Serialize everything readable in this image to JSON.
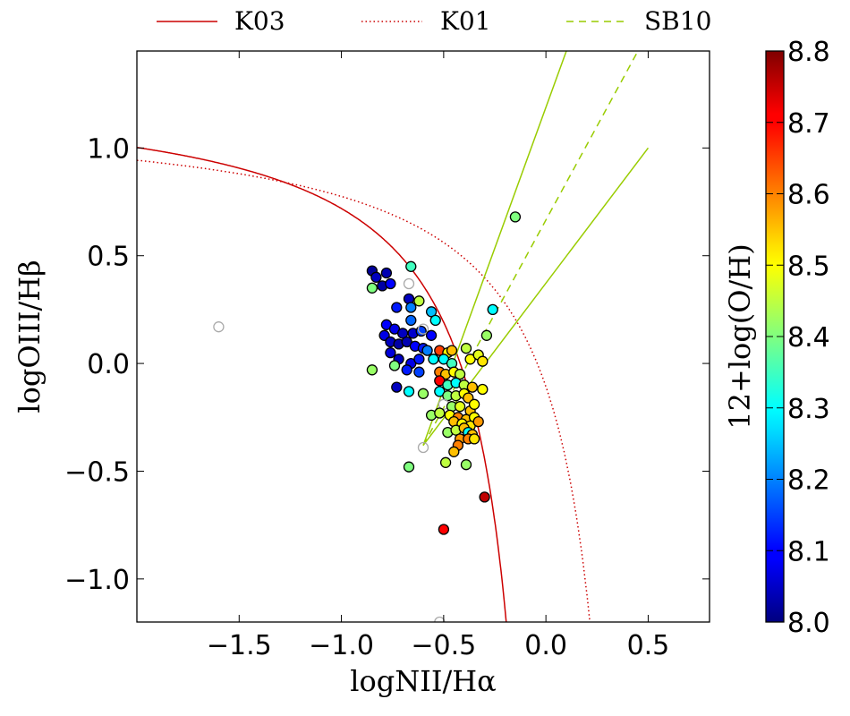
{
  "chart_data": {
    "type": "scatter",
    "xlabel": "logNII/Hα",
    "ylabel": "logOIII/Hβ",
    "xlim": [
      -2.0,
      0.8
    ],
    "ylim": [
      -1.2,
      1.45
    ],
    "x_ticks": [
      -1.5,
      -1.0,
      -0.5,
      0.0,
      0.5
    ],
    "y_ticks": [
      -1.0,
      -0.5,
      0.0,
      0.5,
      1.0
    ],
    "x_tick_labels": [
      "−1.5",
      "−1.0",
      "−0.5",
      "0.0",
      "0.5"
    ],
    "y_tick_labels": [
      "−1.0",
      "−0.5",
      "0.0",
      "0.5",
      "1.0"
    ],
    "grid": false,
    "legend_placement": "top (outside)",
    "legend": [
      {
        "name": "K03",
        "color": "#cc0000",
        "style": "solid"
      },
      {
        "name": "K01",
        "color": "#cc0000",
        "style": "dotted"
      },
      {
        "name": "SB10",
        "color": "#99cc00",
        "style": "dashed"
      }
    ],
    "colorbar": {
      "label": "12+log(O/H)",
      "range": [
        8.0,
        8.8
      ],
      "ticks": [
        8.0,
        8.1,
        8.2,
        8.3,
        8.4,
        8.5,
        8.6,
        8.7,
        8.8
      ],
      "tick_labels": [
        "8.0",
        "8.1",
        "8.2",
        "8.3",
        "8.4",
        "8.5",
        "8.6",
        "8.7",
        "8.8"
      ],
      "colormap": "jet"
    },
    "sb10_lines": [
      {
        "style": "dashed",
        "points": [
          [
            -0.6,
            -0.38
          ],
          [
            0.45,
            1.45
          ]
        ]
      },
      {
        "style": "solid",
        "points": [
          [
            -0.6,
            -0.38
          ],
          [
            0.1,
            1.45
          ]
        ]
      },
      {
        "style": "solid",
        "points": [
          [
            -0.6,
            -0.38
          ],
          [
            0.5,
            1.0
          ]
        ]
      }
    ],
    "points": [
      {
        "x": -0.85,
        "y": 0.43,
        "z": 8.02
      },
      {
        "x": -0.83,
        "y": 0.4,
        "z": 8.05
      },
      {
        "x": -0.8,
        "y": 0.36,
        "z": 8.03
      },
      {
        "x": -0.78,
        "y": 0.42,
        "z": 8.04
      },
      {
        "x": -0.76,
        "y": 0.37,
        "z": 8.1
      },
      {
        "x": -0.85,
        "y": 0.35,
        "z": 8.4
      },
      {
        "x": -0.66,
        "y": 0.45,
        "z": 8.35
      },
      {
        "x": -0.67,
        "y": 0.37,
        "z": null
      },
      {
        "x": -0.67,
        "y": 0.3,
        "z": 8.05
      },
      {
        "x": -0.62,
        "y": 0.29,
        "z": 8.45
      },
      {
        "x": -0.73,
        "y": 0.26,
        "z": 8.12
      },
      {
        "x": -0.66,
        "y": 0.26,
        "z": 8.2
      },
      {
        "x": -0.56,
        "y": 0.24,
        "z": 8.25
      },
      {
        "x": -0.54,
        "y": 0.2,
        "z": 8.3
      },
      {
        "x": -0.66,
        "y": 0.2,
        "z": 8.18
      },
      {
        "x": -0.78,
        "y": 0.18,
        "z": 8.1
      },
      {
        "x": -0.74,
        "y": 0.16,
        "z": 8.08
      },
      {
        "x": -0.7,
        "y": 0.14,
        "z": 8.05
      },
      {
        "x": -0.65,
        "y": 0.14,
        "z": 8.06
      },
      {
        "x": -0.61,
        "y": 0.15,
        "z": 8.15
      },
      {
        "x": -0.6,
        "y": 0.16,
        "z": null
      },
      {
        "x": -0.56,
        "y": 0.13,
        "z": 8.1
      },
      {
        "x": -0.79,
        "y": 0.13,
        "z": 8.08
      },
      {
        "x": -0.76,
        "y": 0.1,
        "z": 8.05
      },
      {
        "x": -0.72,
        "y": 0.09,
        "z": 8.03
      },
      {
        "x": -0.68,
        "y": 0.1,
        "z": 8.04
      },
      {
        "x": -0.64,
        "y": 0.08,
        "z": 8.1
      },
      {
        "x": -0.6,
        "y": 0.07,
        "z": 8.12
      },
      {
        "x": -0.58,
        "y": 0.06,
        "z": 8.2
      },
      {
        "x": -0.52,
        "y": 0.06,
        "z": 8.65
      },
      {
        "x": -0.48,
        "y": 0.05,
        "z": 8.5
      },
      {
        "x": -0.46,
        "y": 0.06,
        "z": 8.55
      },
      {
        "x": -0.39,
        "y": 0.07,
        "z": 8.45
      },
      {
        "x": -0.76,
        "y": 0.05,
        "z": 8.07
      },
      {
        "x": -0.72,
        "y": 0.02,
        "z": 8.05
      },
      {
        "x": -0.66,
        "y": 0.0,
        "z": 8.08
      },
      {
        "x": -0.62,
        "y": 0.02,
        "z": 8.12
      },
      {
        "x": -0.55,
        "y": 0.02,
        "z": 8.3
      },
      {
        "x": -0.5,
        "y": 0.02,
        "z": 8.3
      },
      {
        "x": -0.46,
        "y": 0.0,
        "z": 8.35
      },
      {
        "x": -0.37,
        "y": 0.02,
        "z": 8.5
      },
      {
        "x": -0.33,
        "y": 0.04,
        "z": 8.48
      },
      {
        "x": -0.31,
        "y": 0.01,
        "z": 8.52
      },
      {
        "x": -0.29,
        "y": 0.13,
        "z": 8.42
      },
      {
        "x": -0.26,
        "y": 0.25,
        "z": 8.3
      },
      {
        "x": -0.15,
        "y": 0.68,
        "z": 8.4
      },
      {
        "x": -0.85,
        "y": -0.03,
        "z": 8.42
      },
      {
        "x": -0.74,
        "y": -0.01,
        "z": 8.4
      },
      {
        "x": -0.68,
        "y": -0.03,
        "z": 8.12
      },
      {
        "x": -0.62,
        "y": -0.04,
        "z": 8.15
      },
      {
        "x": -0.52,
        "y": -0.04,
        "z": 8.6
      },
      {
        "x": -0.49,
        "y": -0.05,
        "z": 8.55
      },
      {
        "x": -0.45,
        "y": -0.04,
        "z": 8.5
      },
      {
        "x": -0.42,
        "y": -0.05,
        "z": 8.45
      },
      {
        "x": -0.52,
        "y": -0.08,
        "z": 8.7
      },
      {
        "x": -0.48,
        "y": -0.1,
        "z": 8.35
      },
      {
        "x": -0.44,
        "y": -0.09,
        "z": 8.3
      },
      {
        "x": -0.4,
        "y": -0.1,
        "z": 8.45
      },
      {
        "x": -0.36,
        "y": -0.11,
        "z": 8.55
      },
      {
        "x": -0.31,
        "y": -0.12,
        "z": 8.5
      },
      {
        "x": -0.73,
        "y": -0.11,
        "z": 8.05
      },
      {
        "x": -0.67,
        "y": -0.13,
        "z": 8.3
      },
      {
        "x": -0.6,
        "y": -0.14,
        "z": 8.42
      },
      {
        "x": -0.52,
        "y": -0.13,
        "z": 8.3
      },
      {
        "x": -0.48,
        "y": -0.15,
        "z": 8.4
      },
      {
        "x": -0.44,
        "y": -0.15,
        "z": 8.45
      },
      {
        "x": -0.4,
        "y": -0.14,
        "z": 8.5
      },
      {
        "x": -0.38,
        "y": -0.16,
        "z": 8.55
      },
      {
        "x": -0.5,
        "y": -0.19,
        "z": null
      },
      {
        "x": -0.46,
        "y": -0.2,
        "z": 8.42
      },
      {
        "x": -0.42,
        "y": -0.2,
        "z": 8.48
      },
      {
        "x": -0.37,
        "y": -0.22,
        "z": 8.55
      },
      {
        "x": -0.35,
        "y": -0.19,
        "z": 8.5
      },
      {
        "x": -0.56,
        "y": -0.24,
        "z": 8.42
      },
      {
        "x": -0.52,
        "y": -0.23,
        "z": 8.45
      },
      {
        "x": -0.47,
        "y": -0.24,
        "z": 8.5
      },
      {
        "x": -0.43,
        "y": -0.25,
        "z": 8.6
      },
      {
        "x": -0.39,
        "y": -0.26,
        "z": 8.55
      },
      {
        "x": -0.35,
        "y": -0.25,
        "z": 8.5
      },
      {
        "x": -0.45,
        "y": -0.27,
        "z": 8.55
      },
      {
        "x": -0.41,
        "y": -0.28,
        "z": 8.5
      },
      {
        "x": -0.37,
        "y": -0.29,
        "z": 8.52
      },
      {
        "x": -0.33,
        "y": -0.27,
        "z": 8.58
      },
      {
        "x": -0.48,
        "y": -0.32,
        "z": 8.42
      },
      {
        "x": -0.44,
        "y": -0.31,
        "z": 8.45
      },
      {
        "x": -0.4,
        "y": -0.3,
        "z": 8.55
      },
      {
        "x": -0.38,
        "y": -0.32,
        "z": 8.3
      },
      {
        "x": -0.36,
        "y": -0.33,
        "z": 8.55
      },
      {
        "x": -0.42,
        "y": -0.35,
        "z": 8.58
      },
      {
        "x": -0.38,
        "y": -0.35,
        "z": 8.6
      },
      {
        "x": -0.35,
        "y": -0.35,
        "z": 8.52
      },
      {
        "x": -0.43,
        "y": -0.38,
        "z": 8.6
      },
      {
        "x": -0.45,
        "y": -0.41,
        "z": 8.55
      },
      {
        "x": -0.6,
        "y": -0.39,
        "z": null
      },
      {
        "x": -0.49,
        "y": -0.46,
        "z": 8.45
      },
      {
        "x": -0.39,
        "y": -0.47,
        "z": 8.42
      },
      {
        "x": -0.67,
        "y": -0.48,
        "z": 8.4
      },
      {
        "x": -0.3,
        "y": -0.62,
        "z": 8.75
      },
      {
        "x": -0.5,
        "y": -0.77,
        "z": 8.7
      },
      {
        "x": -1.6,
        "y": 0.17,
        "z": null
      },
      {
        "x": -0.52,
        "y": -1.2,
        "z": null
      }
    ]
  }
}
